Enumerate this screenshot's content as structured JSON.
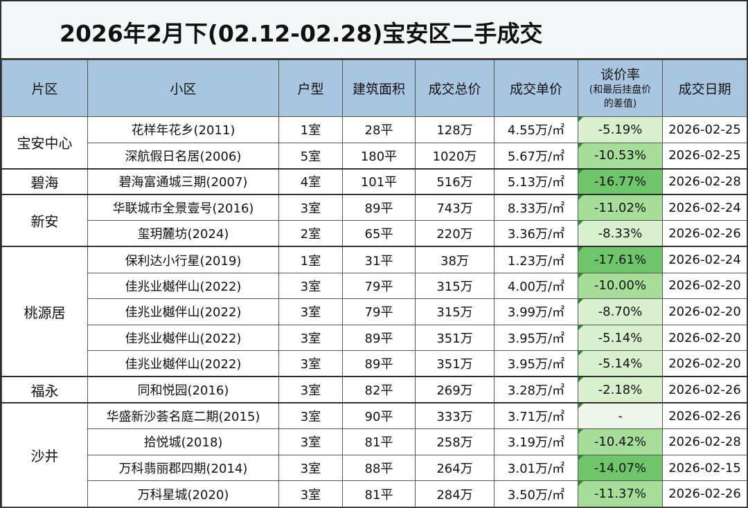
{
  "title": "2026年2月下(02.12-02.28)宝安区二手成交",
  "headers": {
    "district": "片区",
    "community": "小区",
    "layout": "户型",
    "area": "建筑面积",
    "total": "成交总价",
    "unit": "成交单价",
    "discount_main": "谈价率",
    "discount_sub1": "(和最后挂盘价",
    "discount_sub2": "的差值)",
    "date": "成交日期"
  },
  "colors": {
    "header_bg": "#a9c6e1",
    "discount_strong": "#6fc56a",
    "discount_mid": "#a6dd98",
    "discount_light": "#d9f0cf",
    "discount_none": "#eef6ea"
  },
  "groups": [
    {
      "district": "宝安中心",
      "rows": [
        {
          "community": "花样年花乡(2011)",
          "layout": "1室",
          "area": "28平",
          "total": "128万",
          "unit": "4.55万/㎡",
          "discount": "-5.19%",
          "discount_value": -5.19,
          "date": "2026-02-25"
        },
        {
          "community": "深航假日名居(2006)",
          "layout": "5室",
          "area": "180平",
          "total": "1020万",
          "unit": "5.67万/㎡",
          "discount": "-10.53%",
          "discount_value": -10.53,
          "date": "2026-02-25"
        }
      ]
    },
    {
      "district": "碧海",
      "rows": [
        {
          "community": "碧海富通城三期(2007)",
          "layout": "4室",
          "area": "101平",
          "total": "516万",
          "unit": "5.13万/㎡",
          "discount": "-16.77%",
          "discount_value": -16.77,
          "date": "2026-02-28"
        }
      ]
    },
    {
      "district": "新安",
      "rows": [
        {
          "community": "华联城市全景壹号(2016)",
          "layout": "3室",
          "area": "89平",
          "total": "743万",
          "unit": "8.33万/㎡",
          "discount": "-11.02%",
          "discount_value": -11.02,
          "date": "2026-02-24"
        },
        {
          "community": "玺玥麓坊(2024)",
          "layout": "2室",
          "area": "65平",
          "total": "220万",
          "unit": "3.36万/㎡",
          "discount": "-8.33%",
          "discount_value": -8.33,
          "date": "2026-02-26"
        }
      ]
    },
    {
      "district": "桃源居",
      "rows": [
        {
          "community": "保利达小行星(2019)",
          "layout": "1室",
          "area": "31平",
          "total": "38万",
          "unit": "1.23万/㎡",
          "discount": "-17.61%",
          "discount_value": -17.61,
          "date": "2026-02-24"
        },
        {
          "community": "佳兆业樾伴山(2022)",
          "layout": "3室",
          "area": "79平",
          "total": "315万",
          "unit": "4.00万/㎡",
          "discount": "-10.00%",
          "discount_value": -10.0,
          "date": "2026-02-20"
        },
        {
          "community": "佳兆业樾伴山(2022)",
          "layout": "3室",
          "area": "79平",
          "total": "315万",
          "unit": "3.99万/㎡",
          "discount": "-8.70%",
          "discount_value": -8.7,
          "date": "2026-02-20"
        },
        {
          "community": "佳兆业樾伴山(2022)",
          "layout": "3室",
          "area": "89平",
          "total": "351万",
          "unit": "3.95万/㎡",
          "discount": "-5.14%",
          "discount_value": -5.14,
          "date": "2026-02-20"
        },
        {
          "community": "佳兆业樾伴山(2022)",
          "layout": "3室",
          "area": "89平",
          "total": "351万",
          "unit": "3.95万/㎡",
          "discount": "-5.14%",
          "discount_value": -5.14,
          "date": "2026-02-20"
        }
      ]
    },
    {
      "district": "福永",
      "rows": [
        {
          "community": "同和悦园(2016)",
          "layout": "3室",
          "area": "82平",
          "total": "269万",
          "unit": "3.28万/㎡",
          "discount": "-2.18%",
          "discount_value": -2.18,
          "date": "2026-02-26"
        }
      ]
    },
    {
      "district": "沙井",
      "rows": [
        {
          "community": "华盛新沙荟名庭二期(2015)",
          "layout": "3室",
          "area": "90平",
          "total": "333万",
          "unit": "3.71万/㎡",
          "discount": "-",
          "discount_value": null,
          "date": "2026-02-26"
        },
        {
          "community": "拾悦城(2018)",
          "layout": "3室",
          "area": "81平",
          "total": "258万",
          "unit": "3.19万/㎡",
          "discount": "-10.42%",
          "discount_value": -10.42,
          "date": "2026-02-28"
        },
        {
          "community": "万科翡丽郡四期(2014)",
          "layout": "3室",
          "area": "88平",
          "total": "264万",
          "unit": "3.01万/㎡",
          "discount": "-14.07%",
          "discount_value": -14.07,
          "date": "2026-02-15"
        },
        {
          "community": "万科星城(2020)",
          "layout": "3室",
          "area": "81平",
          "total": "284万",
          "unit": "3.50万/㎡",
          "discount": "-11.37%",
          "discount_value": -11.37,
          "date": "2026-02-26"
        }
      ]
    }
  ]
}
